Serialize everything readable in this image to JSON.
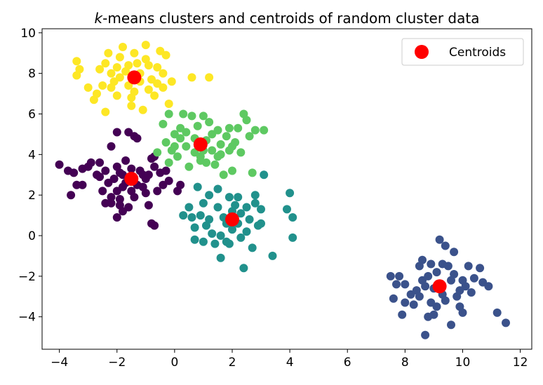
{
  "chart_data": {
    "type": "scatter",
    "title_prefix": "k",
    "title_rest": "-means clusters and centroids of random cluster data",
    "xlim": [
      -4.6,
      12.4
    ],
    "ylim": [
      -5.6,
      10.2
    ],
    "xticks": [
      -4,
      -2,
      0,
      2,
      4,
      6,
      8,
      10,
      12
    ],
    "yticks": [
      -4,
      -2,
      0,
      2,
      4,
      6,
      8,
      10
    ],
    "xtick_labels": [
      "−4",
      "−2",
      "0",
      "2",
      "4",
      "6",
      "8",
      "10",
      "12"
    ],
    "ytick_labels": [
      "−4",
      "−2",
      "0",
      "2",
      "4",
      "6",
      "8",
      "10"
    ],
    "grid": false,
    "legend": {
      "position": "top-right",
      "entries": [
        "Centroids"
      ]
    },
    "colors": {
      "purple": "#440154",
      "navy": "#3b528b",
      "teal": "#21918c",
      "green": "#5ec962",
      "yellow": "#fde725",
      "centroid": "#ff0000"
    },
    "clusters": [
      {
        "color": "#440154",
        "points": [
          [
            -4.0,
            3.5
          ],
          [
            -3.7,
            3.2
          ],
          [
            -3.5,
            3.1
          ],
          [
            -3.6,
            2.0
          ],
          [
            -3.4,
            2.5
          ],
          [
            -3.2,
            2.5
          ],
          [
            -3.2,
            3.3
          ],
          [
            -3.0,
            3.4
          ],
          [
            -2.9,
            3.6
          ],
          [
            -2.6,
            3.6
          ],
          [
            -2.4,
            3.2
          ],
          [
            -2.4,
            1.6
          ],
          [
            -2.2,
            1.6
          ],
          [
            -2.2,
            4.4
          ],
          [
            -2.0,
            5.1
          ],
          [
            -2.0,
            3.4
          ],
          [
            -2.0,
            2.2
          ],
          [
            -1.9,
            1.8
          ],
          [
            -1.9,
            1.5
          ],
          [
            -2.0,
            0.9
          ],
          [
            -1.8,
            2.4
          ],
          [
            -1.8,
            3.0
          ],
          [
            -1.7,
            3.7
          ],
          [
            -1.6,
            5.1
          ],
          [
            -1.4,
            4.9
          ],
          [
            -1.3,
            4.8
          ],
          [
            -1.2,
            3.2
          ],
          [
            -1.1,
            3.0
          ],
          [
            -1.0,
            2.8
          ],
          [
            -1.0,
            2.1
          ],
          [
            -0.9,
            1.5
          ],
          [
            -0.8,
            3.8
          ],
          [
            -0.7,
            3.9
          ],
          [
            -0.7,
            3.4
          ],
          [
            -0.5,
            3.1
          ],
          [
            -0.4,
            2.5
          ],
          [
            -0.3,
            3.2
          ],
          [
            -0.2,
            2.7
          ],
          [
            -0.6,
            2.2
          ],
          [
            -0.7,
            0.5
          ],
          [
            -0.8,
            0.6
          ],
          [
            0.1,
            2.2
          ],
          [
            0.2,
            2.5
          ],
          [
            -2.5,
            2.2
          ],
          [
            -2.3,
            2.6
          ],
          [
            -2.1,
            2.8
          ],
          [
            -1.7,
            2.6
          ],
          [
            -1.5,
            2.2
          ],
          [
            -1.3,
            2.5
          ],
          [
            -1.9,
            3.1
          ],
          [
            -2.6,
            2.9
          ],
          [
            -1.4,
            1.9
          ],
          [
            -1.1,
            2.4
          ],
          [
            -0.9,
            3.0
          ],
          [
            -1.6,
            1.4
          ],
          [
            -2.2,
            1.9
          ],
          [
            -1.5,
            3.3
          ],
          [
            -2.7,
            3.0
          ],
          [
            -1.8,
            1.2
          ]
        ]
      },
      {
        "color": "#3b528b",
        "points": [
          [
            7.5,
            -2.0
          ],
          [
            7.6,
            -3.1
          ],
          [
            7.7,
            -2.4
          ],
          [
            7.8,
            -2.0
          ],
          [
            7.9,
            -3.9
          ],
          [
            8.0,
            -3.3
          ],
          [
            8.0,
            -2.4
          ],
          [
            8.2,
            -2.9
          ],
          [
            8.3,
            -3.4
          ],
          [
            8.4,
            -2.7
          ],
          [
            8.5,
            -1.5
          ],
          [
            8.6,
            -1.2
          ],
          [
            8.6,
            -2.2
          ],
          [
            8.7,
            -4.9
          ],
          [
            8.8,
            -4.0
          ],
          [
            8.9,
            -3.3
          ],
          [
            8.9,
            -1.4
          ],
          [
            9.0,
            -3.9
          ],
          [
            9.1,
            -1.8
          ],
          [
            9.2,
            -0.2
          ],
          [
            9.3,
            -1.4
          ],
          [
            9.4,
            -0.5
          ],
          [
            9.5,
            -1.5
          ],
          [
            9.6,
            -4.4
          ],
          [
            9.7,
            -0.8
          ],
          [
            9.8,
            -3.0
          ],
          [
            9.9,
            -3.5
          ],
          [
            10.0,
            -3.8
          ],
          [
            10.1,
            -2.5
          ],
          [
            10.2,
            -1.5
          ],
          [
            10.3,
            -2.8
          ],
          [
            10.4,
            -2.1
          ],
          [
            10.6,
            -1.6
          ],
          [
            10.7,
            -2.3
          ],
          [
            10.9,
            -2.5
          ],
          [
            11.2,
            -3.8
          ],
          [
            11.5,
            -4.3
          ],
          [
            9.0,
            -2.6
          ],
          [
            9.3,
            -2.9
          ],
          [
            9.6,
            -2.2
          ],
          [
            8.8,
            -2.0
          ],
          [
            9.4,
            -3.2
          ],
          [
            9.9,
            -2.7
          ],
          [
            8.5,
            -3.0
          ],
          [
            9.1,
            -3.5
          ],
          [
            9.7,
            -1.9
          ],
          [
            10.0,
            -2.2
          ],
          [
            8.7,
            -2.5
          ]
        ]
      },
      {
        "color": "#21918c",
        "points": [
          [
            0.3,
            1.0
          ],
          [
            0.5,
            1.4
          ],
          [
            0.6,
            0.9
          ],
          [
            0.7,
            0.4
          ],
          [
            0.8,
            2.4
          ],
          [
            0.9,
            1.0
          ],
          [
            1.0,
            1.6
          ],
          [
            1.1,
            0.5
          ],
          [
            1.2,
            2.0
          ],
          [
            1.3,
            0.1
          ],
          [
            1.4,
            -0.4
          ],
          [
            1.5,
            1.4
          ],
          [
            1.5,
            2.3
          ],
          [
            1.6,
            -1.1
          ],
          [
            1.7,
            0.9
          ],
          [
            1.8,
            -0.3
          ],
          [
            1.9,
            1.9
          ],
          [
            2.0,
            0.3
          ],
          [
            2.1,
            1.5
          ],
          [
            2.2,
            0.6
          ],
          [
            2.3,
            -0.1
          ],
          [
            2.4,
            -1.6
          ],
          [
            2.5,
            1.4
          ],
          [
            2.6,
            0.8
          ],
          [
            2.7,
            -0.6
          ],
          [
            2.8,
            2.0
          ],
          [
            2.9,
            0.5
          ],
          [
            3.0,
            1.3
          ],
          [
            3.1,
            3.0
          ],
          [
            3.4,
            -1.0
          ],
          [
            3.9,
            1.3
          ],
          [
            4.0,
            2.1
          ],
          [
            4.1,
            0.9
          ],
          [
            4.1,
            -0.1
          ],
          [
            2.0,
            1.2
          ],
          [
            1.8,
            0.6
          ],
          [
            2.3,
            1.1
          ],
          [
            1.6,
            0.0
          ],
          [
            2.5,
            0.2
          ],
          [
            0.7,
            -0.2
          ],
          [
            1.9,
            -0.4
          ],
          [
            2.2,
            1.9
          ],
          [
            1.2,
            0.8
          ],
          [
            3.0,
            0.6
          ],
          [
            1.0,
            -0.3
          ],
          [
            2.8,
            1.6
          ]
        ]
      },
      {
        "color": "#5ec962",
        "points": [
          [
            -0.6,
            4.1
          ],
          [
            -0.4,
            5.5
          ],
          [
            -0.3,
            4.6
          ],
          [
            -0.2,
            6.0
          ],
          [
            -0.1,
            4.2
          ],
          [
            0.0,
            5.0
          ],
          [
            0.1,
            3.9
          ],
          [
            0.2,
            5.3
          ],
          [
            0.3,
            6.0
          ],
          [
            0.4,
            4.4
          ],
          [
            0.5,
            3.4
          ],
          [
            0.6,
            5.9
          ],
          [
            0.7,
            4.1
          ],
          [
            0.8,
            5.4
          ],
          [
            0.9,
            3.7
          ],
          [
            1.0,
            5.9
          ],
          [
            1.1,
            4.7
          ],
          [
            1.2,
            5.6
          ],
          [
            1.3,
            4.2
          ],
          [
            1.4,
            3.5
          ],
          [
            1.5,
            5.2
          ],
          [
            1.6,
            4.5
          ],
          [
            1.7,
            3.0
          ],
          [
            1.8,
            4.9
          ],
          [
            1.9,
            4.2
          ],
          [
            2.0,
            3.2
          ],
          [
            2.1,
            4.6
          ],
          [
            2.2,
            5.3
          ],
          [
            2.3,
            4.1
          ],
          [
            2.4,
            6.0
          ],
          [
            2.5,
            5.7
          ],
          [
            2.6,
            4.9
          ],
          [
            2.7,
            3.1
          ],
          [
            2.8,
            5.2
          ],
          [
            3.1,
            5.2
          ],
          [
            1.0,
            4.2
          ],
          [
            0.7,
            4.8
          ],
          [
            1.3,
            5.0
          ],
          [
            0.4,
            5.1
          ],
          [
            1.6,
            4.0
          ],
          [
            0.2,
            4.8
          ],
          [
            1.9,
            5.3
          ],
          [
            0.9,
            3.9
          ],
          [
            0.0,
            4.4
          ],
          [
            1.5,
            3.9
          ],
          [
            2.0,
            4.4
          ],
          [
            -0.2,
            3.6
          ],
          [
            1.1,
            3.6
          ]
        ]
      },
      {
        "color": "#fde725",
        "points": [
          [
            -3.4,
            8.6
          ],
          [
            -3.3,
            8.2
          ],
          [
            -3.4,
            7.9
          ],
          [
            -3.0,
            7.3
          ],
          [
            -2.8,
            6.7
          ],
          [
            -2.7,
            7.0
          ],
          [
            -2.6,
            8.2
          ],
          [
            -2.5,
            7.4
          ],
          [
            -2.4,
            6.1
          ],
          [
            -2.3,
            9.0
          ],
          [
            -2.2,
            8.0
          ],
          [
            -2.1,
            7.6
          ],
          [
            -2.0,
            6.9
          ],
          [
            -1.9,
            8.8
          ],
          [
            -1.8,
            9.3
          ],
          [
            -1.7,
            8.1
          ],
          [
            -1.6,
            7.4
          ],
          [
            -1.5,
            6.8
          ],
          [
            -1.4,
            9.0
          ],
          [
            -1.3,
            8.5
          ],
          [
            -1.2,
            7.6
          ],
          [
            -1.1,
            6.2
          ],
          [
            -1.0,
            9.4
          ],
          [
            -0.9,
            8.4
          ],
          [
            -0.8,
            7.7
          ],
          [
            -0.7,
            6.9
          ],
          [
            -0.6,
            8.3
          ],
          [
            -0.5,
            9.1
          ],
          [
            -0.4,
            7.3
          ],
          [
            -0.3,
            8.9
          ],
          [
            -0.2,
            6.5
          ],
          [
            -0.1,
            7.6
          ],
          [
            0.6,
            7.8
          ],
          [
            1.2,
            7.8
          ],
          [
            -2.0,
            8.3
          ],
          [
            -1.6,
            8.4
          ],
          [
            -1.2,
            8.0
          ],
          [
            -0.9,
            7.2
          ],
          [
            -1.4,
            7.1
          ],
          [
            -2.2,
            7.3
          ],
          [
            -0.6,
            7.5
          ],
          [
            -1.9,
            7.8
          ],
          [
            -1.0,
            8.7
          ],
          [
            -2.4,
            8.5
          ],
          [
            -0.4,
            8.0
          ],
          [
            -1.5,
            6.4
          ]
        ]
      }
    ],
    "centroids": [
      [
        -1.5,
        2.8
      ],
      [
        9.2,
        -2.5
      ],
      [
        2.0,
        0.8
      ],
      [
        0.9,
        4.5
      ],
      [
        -1.4,
        7.8
      ]
    ]
  }
}
